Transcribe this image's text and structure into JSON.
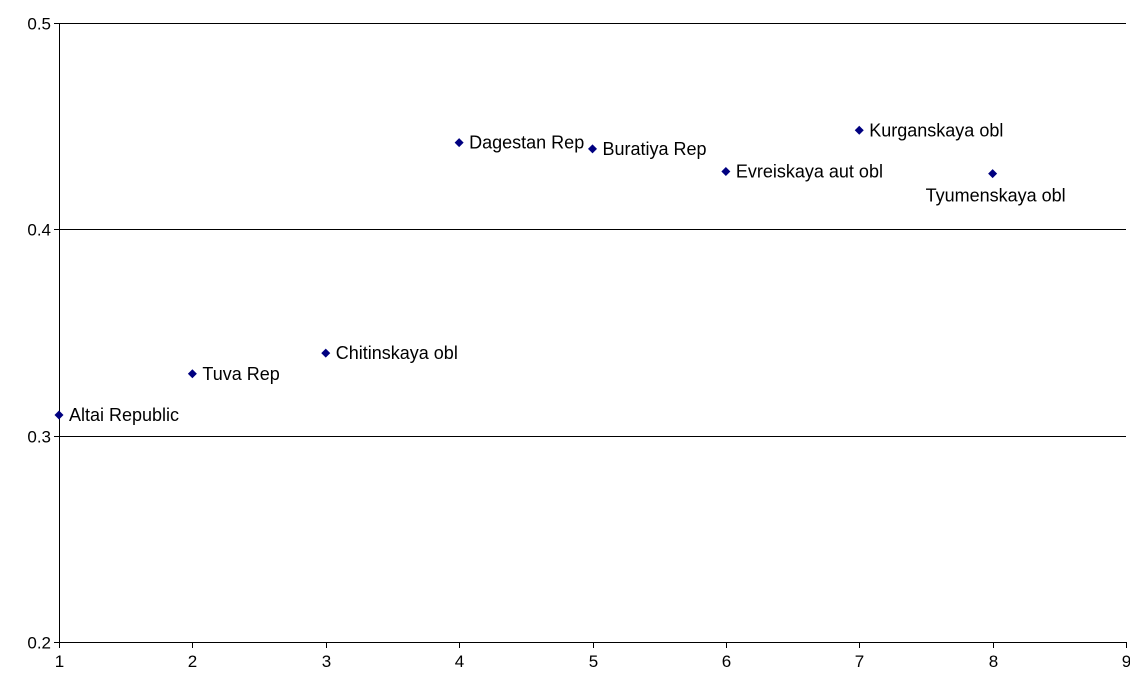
{
  "chart_data": {
    "type": "scatter",
    "title": "",
    "xlabel": "",
    "ylabel": "",
    "xlim": [
      1,
      9
    ],
    "ylim": [
      0.2,
      0.5
    ],
    "x_ticks": [
      "1",
      "2",
      "3",
      "4",
      "5",
      "6",
      "7",
      "8",
      "9"
    ],
    "y_ticks": [
      "0.2",
      "0.3",
      "0.4",
      "0.5"
    ],
    "grid": "horizontal major lines",
    "legend": "none",
    "marker_color": "#000080",
    "points": [
      {
        "x": 1,
        "y": 0.31,
        "label": "Altai Republic",
        "label_pos": "right"
      },
      {
        "x": 2,
        "y": 0.33,
        "label": "Tuva Rep",
        "label_pos": "right"
      },
      {
        "x": 3,
        "y": 0.34,
        "label": "Chitinskaya obl",
        "label_pos": "right"
      },
      {
        "x": 4,
        "y": 0.442,
        "label": "Dagestan Rep",
        "label_pos": "right"
      },
      {
        "x": 5,
        "y": 0.439,
        "label": "Buratiya Rep",
        "label_pos": "right"
      },
      {
        "x": 6,
        "y": 0.428,
        "label": "Evreiskaya aut obl",
        "label_pos": "right"
      },
      {
        "x": 7,
        "y": 0.448,
        "label": "Kurganskaya obl",
        "label_pos": "right"
      },
      {
        "x": 8,
        "y": 0.427,
        "label": "Tyumenskaya obl",
        "label_pos": "below"
      }
    ]
  }
}
